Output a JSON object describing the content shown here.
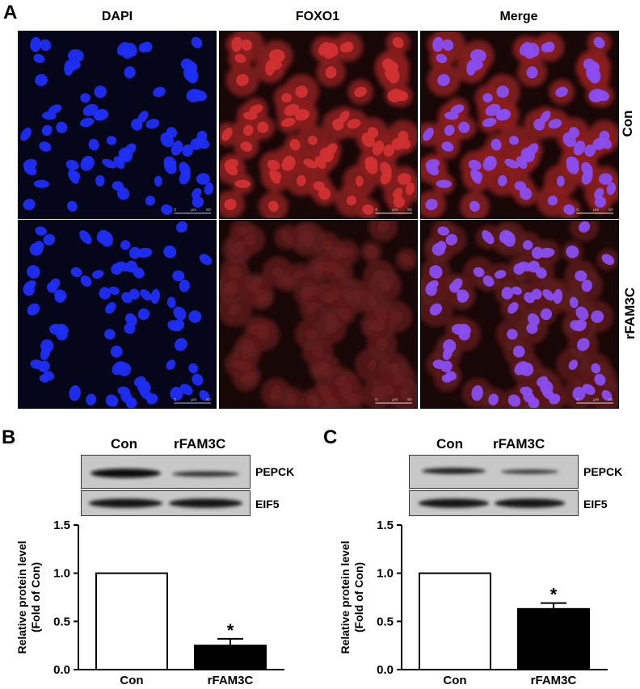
{
  "panel_a": {
    "letter": "A",
    "columns": [
      "DAPI",
      "FOXO1",
      "Merge"
    ],
    "rows": [
      "Con",
      "rFAM3C"
    ],
    "scale_bar": {
      "left": "0",
      "mid": "μm",
      "right": "50"
    }
  },
  "panel_b": {
    "letter": "B",
    "lanes": [
      "Con",
      "rFAM3C"
    ],
    "blot_labels": [
      "PEPCK",
      "EIF5"
    ]
  },
  "panel_c": {
    "letter": "C",
    "lanes": [
      "Con",
      "rFAM3C"
    ],
    "blot_labels": [
      "PEPCK",
      "EIF5"
    ]
  },
  "chart_data": [
    {
      "type": "bar",
      "panel": "B",
      "categories": [
        "Con",
        "rFAM3C"
      ],
      "values": [
        1.0,
        0.25
      ],
      "errors": [
        0,
        0.07
      ],
      "significance": [
        "",
        "*"
      ],
      "bar_fill": [
        "#ffffff",
        "#000000"
      ],
      "ylabel": "Relative protein level\n(Fold of Con)",
      "ylim": [
        0,
        1.5
      ],
      "yticks": [
        "0.0",
        "0.5",
        "1.0",
        "1.5"
      ]
    },
    {
      "type": "bar",
      "panel": "C",
      "categories": [
        "Con",
        "rFAM3C"
      ],
      "values": [
        1.0,
        0.63
      ],
      "errors": [
        0,
        0.06
      ],
      "significance": [
        "",
        "*"
      ],
      "bar_fill": [
        "#ffffff",
        "#000000"
      ],
      "ylabel": "Relative protein level\n(Fold of Con)",
      "ylim": [
        0,
        1.5
      ],
      "yticks": [
        "0.0",
        "0.5",
        "1.0",
        "1.5"
      ]
    }
  ]
}
